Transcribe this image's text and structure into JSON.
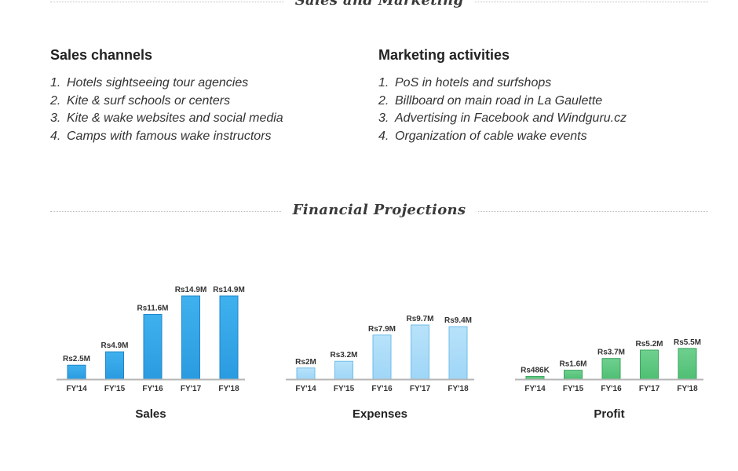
{
  "sections": {
    "sales_marketing": "Sales and Marketing",
    "financial": "Financial Projections"
  },
  "sales_channels": {
    "heading": "Sales channels",
    "items": [
      {
        "num": "1.",
        "text": "Hotels sightseeing tour agencies"
      },
      {
        "num": "2.",
        "text": "Kite & surf schools or centers"
      },
      {
        "num": "3.",
        "text": "Kite & wake websites and social media"
      },
      {
        "num": "4.",
        "text": "Camps with famous wake instructors"
      }
    ]
  },
  "marketing_activities": {
    "heading": "Marketing activities",
    "items": [
      {
        "num": "1.",
        "text": "PoS in hotels and surfshops"
      },
      {
        "num": "2.",
        "text": "Billboard on main road in La Gaulette"
      },
      {
        "num": "3.",
        "text": "Advertising in Facebook and Windguru.cz"
      },
      {
        "num": "4.",
        "text": "Organization of cable wake events"
      }
    ]
  },
  "chart_data": [
    {
      "type": "bar",
      "title": "Sales",
      "categories": [
        "FY'14",
        "FY'15",
        "FY'16",
        "FY'17",
        "FY'18"
      ],
      "values": [
        2.5,
        4.9,
        11.6,
        14.9,
        14.9
      ],
      "labels": [
        "Rs2.5M",
        "Rs4.9M",
        "Rs11.6M",
        "Rs14.9M",
        "Rs14.9M"
      ],
      "unit": "M Rs",
      "ylim": [
        0,
        14.9
      ],
      "color": "#2b9be0",
      "color_light": "#3fb1ee",
      "border": "#1f86c9"
    },
    {
      "type": "bar",
      "title": "Expenses",
      "categories": [
        "FY'14",
        "FY'15",
        "FY'16",
        "FY'17",
        "FY'18"
      ],
      "values": [
        2,
        3.2,
        7.9,
        9.7,
        9.4
      ],
      "labels": [
        "Rs2M",
        "Rs3.2M",
        "Rs7.9M",
        "Rs9.7M",
        "Rs9.4M"
      ],
      "unit": "M Rs",
      "ylim": [
        0,
        14.9
      ],
      "color": "#9fd6f7",
      "color_light": "#b8e2fa",
      "border": "#6fbde8"
    },
    {
      "type": "bar",
      "title": "Profit",
      "categories": [
        "FY'14",
        "FY'15",
        "FY'16",
        "FY'17",
        "FY'18"
      ],
      "values": [
        0.486,
        1.6,
        3.7,
        5.2,
        5.5
      ],
      "labels": [
        "Rs486K",
        "Rs1.6M",
        "Rs3.7M",
        "Rs5.2M",
        "Rs5.5M"
      ],
      "unit": "M Rs",
      "ylim": [
        0,
        14.9
      ],
      "color": "#4fbf73",
      "color_light": "#6fd08f",
      "border": "#3aa45e"
    }
  ]
}
